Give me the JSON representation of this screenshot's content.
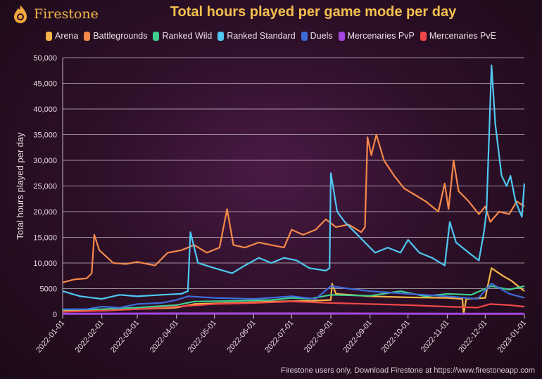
{
  "brand": {
    "name": "Firestone",
    "icon": "flame-icon"
  },
  "footer": "Firestone users only, Download Firestone at https://www.firestoneapp.com",
  "chart_data": {
    "type": "line",
    "title": "Total hours played per game mode per day",
    "xlabel": "",
    "ylabel": "Total hours played per day",
    "ylim": [
      0,
      50000
    ],
    "xlim": [
      "2022-01-01",
      "2023-01-01"
    ],
    "grid": true,
    "legend": "top",
    "yticks": [
      "0",
      "5000",
      "10,000",
      "15,000",
      "20,000",
      "25,000",
      "30,000",
      "35,000",
      "40,000",
      "45,000",
      "50,000"
    ],
    "xticks": [
      "2022-01-01",
      "2022-02-01",
      "2022-03-01",
      "2022-04-01",
      "2022-05-01",
      "2022-06-01",
      "2022-07-01",
      "2022-08-01",
      "2022-09-01",
      "2022-10-01",
      "2022-11-01",
      "2022-12-01",
      "2023-01-01"
    ],
    "series": [
      {
        "name": "Arena",
        "color": "#f7b548",
        "points": [
          [
            "2022-01-01",
            800
          ],
          [
            "2022-02-01",
            700
          ],
          [
            "2022-03-01",
            1000
          ],
          [
            "2022-04-01",
            1300
          ],
          [
            "2022-04-15",
            2000
          ],
          [
            "2022-05-15",
            2200
          ],
          [
            "2022-06-15",
            2500
          ],
          [
            "2022-07-15",
            2600
          ],
          [
            "2022-08-01",
            2800
          ],
          [
            "2022-08-02",
            6000
          ],
          [
            "2022-08-05",
            4000
          ],
          [
            "2022-09-01",
            3500
          ],
          [
            "2022-10-01",
            3300
          ],
          [
            "2022-11-01",
            3200
          ],
          [
            "2022-11-13",
            3000
          ],
          [
            "2022-11-14",
            0
          ],
          [
            "2022-11-16",
            3000
          ],
          [
            "2022-12-01",
            3200
          ],
          [
            "2022-12-06",
            9000
          ],
          [
            "2022-12-15",
            7500
          ],
          [
            "2022-12-22",
            6500
          ],
          [
            "2023-01-01",
            4500
          ]
        ]
      },
      {
        "name": "Battlegrounds",
        "color": "#f6894a",
        "points": [
          [
            "2022-01-01",
            6200
          ],
          [
            "2022-01-10",
            6800
          ],
          [
            "2022-01-20",
            7000
          ],
          [
            "2022-01-24",
            8000
          ],
          [
            "2022-01-26",
            15500
          ],
          [
            "2022-01-30",
            12500
          ],
          [
            "2022-02-10",
            10000
          ],
          [
            "2022-02-20",
            9800
          ],
          [
            "2022-03-01",
            10200
          ],
          [
            "2022-03-15",
            9500
          ],
          [
            "2022-03-25",
            12000
          ],
          [
            "2022-04-05",
            12500
          ],
          [
            "2022-04-15",
            13500
          ],
          [
            "2022-04-25",
            12000
          ],
          [
            "2022-05-05",
            13000
          ],
          [
            "2022-05-11",
            20500
          ],
          [
            "2022-05-16",
            13500
          ],
          [
            "2022-05-25",
            13000
          ],
          [
            "2022-06-05",
            14000
          ],
          [
            "2022-06-15",
            13500
          ],
          [
            "2022-06-25",
            13000
          ],
          [
            "2022-07-01",
            16500
          ],
          [
            "2022-07-10",
            15500
          ],
          [
            "2022-07-20",
            16500
          ],
          [
            "2022-07-28",
            18500
          ],
          [
            "2022-08-05",
            17000
          ],
          [
            "2022-08-15",
            17500
          ],
          [
            "2022-08-25",
            16000
          ],
          [
            "2022-08-28",
            17000
          ],
          [
            "2022-08-30",
            34500
          ],
          [
            "2022-09-02",
            31000
          ],
          [
            "2022-09-06",
            35000
          ],
          [
            "2022-09-12",
            30000
          ],
          [
            "2022-09-20",
            27000
          ],
          [
            "2022-09-28",
            24500
          ],
          [
            "2022-10-05",
            23500
          ],
          [
            "2022-10-15",
            22000
          ],
          [
            "2022-10-25",
            20000
          ],
          [
            "2022-10-30",
            25500
          ],
          [
            "2022-11-02",
            20500
          ],
          [
            "2022-11-06",
            30000
          ],
          [
            "2022-11-10",
            24000
          ],
          [
            "2022-11-18",
            22000
          ],
          [
            "2022-11-26",
            19500
          ],
          [
            "2022-12-01",
            21000
          ],
          [
            "2022-12-05",
            18000
          ],
          [
            "2022-12-12",
            20000
          ],
          [
            "2022-12-20",
            19500
          ],
          [
            "2022-12-26",
            22000
          ],
          [
            "2023-01-01",
            21000
          ]
        ]
      },
      {
        "name": "Ranked Wild",
        "color": "#3ecf8e",
        "points": [
          [
            "2022-01-01",
            900
          ],
          [
            "2022-02-01",
            1000
          ],
          [
            "2022-03-01",
            1300
          ],
          [
            "2022-04-01",
            1800
          ],
          [
            "2022-04-15",
            2500
          ],
          [
            "2022-05-15",
            2600
          ],
          [
            "2022-06-15",
            2800
          ],
          [
            "2022-07-01",
            3200
          ],
          [
            "2022-07-15",
            3000
          ],
          [
            "2022-08-01",
            3800
          ],
          [
            "2022-09-01",
            3600
          ],
          [
            "2022-09-25",
            4500
          ],
          [
            "2022-10-15",
            3500
          ],
          [
            "2022-11-01",
            4000
          ],
          [
            "2022-11-20",
            3800
          ],
          [
            "2022-12-06",
            5500
          ],
          [
            "2022-12-20",
            4800
          ],
          [
            "2023-01-01",
            5500
          ]
        ]
      },
      {
        "name": "Ranked Standard",
        "color": "#4fc8f2",
        "points": [
          [
            "2022-01-01",
            4500
          ],
          [
            "2022-01-15",
            3500
          ],
          [
            "2022-02-01",
            3000
          ],
          [
            "2022-02-15",
            3800
          ],
          [
            "2022-03-01",
            3500
          ],
          [
            "2022-03-20",
            3800
          ],
          [
            "2022-04-05",
            4000
          ],
          [
            "2022-04-10",
            4500
          ],
          [
            "2022-04-12",
            16000
          ],
          [
            "2022-04-18",
            10000
          ],
          [
            "2022-05-01",
            9000
          ],
          [
            "2022-05-15",
            8000
          ],
          [
            "2022-05-25",
            9500
          ],
          [
            "2022-06-05",
            11000
          ],
          [
            "2022-06-15",
            10000
          ],
          [
            "2022-06-25",
            11000
          ],
          [
            "2022-07-05",
            10500
          ],
          [
            "2022-07-15",
            9000
          ],
          [
            "2022-07-28",
            8500
          ],
          [
            "2022-07-31",
            9000
          ],
          [
            "2022-08-01",
            27500
          ],
          [
            "2022-08-06",
            20000
          ],
          [
            "2022-08-12",
            18000
          ],
          [
            "2022-08-20",
            16000
          ],
          [
            "2022-08-28",
            14000
          ],
          [
            "2022-09-05",
            12000
          ],
          [
            "2022-09-15",
            13000
          ],
          [
            "2022-09-25",
            12000
          ],
          [
            "2022-10-01",
            14500
          ],
          [
            "2022-10-10",
            12000
          ],
          [
            "2022-10-20",
            11000
          ],
          [
            "2022-10-30",
            9500
          ],
          [
            "2022-11-03",
            18000
          ],
          [
            "2022-11-08",
            14000
          ],
          [
            "2022-11-18",
            12000
          ],
          [
            "2022-11-26",
            10500
          ],
          [
            "2022-11-30",
            16000
          ],
          [
            "2022-12-02",
            20000
          ],
          [
            "2022-12-06",
            48500
          ],
          [
            "2022-12-09",
            37000
          ],
          [
            "2022-12-14",
            27000
          ],
          [
            "2022-12-18",
            25000
          ],
          [
            "2022-12-21",
            27000
          ],
          [
            "2022-12-25",
            22000
          ],
          [
            "2022-12-30",
            19000
          ],
          [
            "2023-01-01",
            25500
          ]
        ]
      },
      {
        "name": "Duels",
        "color": "#3d6bd9",
        "points": [
          [
            "2022-01-01",
            1000
          ],
          [
            "2022-01-20",
            1000
          ],
          [
            "2022-02-01",
            1500
          ],
          [
            "2022-02-15",
            1300
          ],
          [
            "2022-03-01",
            2000
          ],
          [
            "2022-03-20",
            2200
          ],
          [
            "2022-04-01",
            2800
          ],
          [
            "2022-04-10",
            3500
          ],
          [
            "2022-05-01",
            3200
          ],
          [
            "2022-06-01",
            3000
          ],
          [
            "2022-07-01",
            3500
          ],
          [
            "2022-07-20",
            3000
          ],
          [
            "2022-08-01",
            5500
          ],
          [
            "2022-08-15",
            5000
          ],
          [
            "2022-09-01",
            4500
          ],
          [
            "2022-10-01",
            4000
          ],
          [
            "2022-11-01",
            3500
          ],
          [
            "2022-11-25",
            3000
          ],
          [
            "2022-12-06",
            6000
          ],
          [
            "2022-12-20",
            4000
          ],
          [
            "2023-01-01",
            3200
          ]
        ]
      },
      {
        "name": "Mercenaries PvP",
        "color": "#a544e0",
        "points": [
          [
            "2022-01-01",
            100
          ],
          [
            "2022-04-01",
            150
          ],
          [
            "2022-08-01",
            150
          ],
          [
            "2022-12-01",
            100
          ],
          [
            "2023-01-01",
            100
          ]
        ]
      },
      {
        "name": "Mercenaries PvE",
        "color": "#f04848",
        "points": [
          [
            "2022-01-01",
            500
          ],
          [
            "2022-02-01",
            700
          ],
          [
            "2022-03-01",
            1000
          ],
          [
            "2022-04-01",
            1500
          ],
          [
            "2022-05-01",
            2000
          ],
          [
            "2022-06-01",
            2200
          ],
          [
            "2022-07-01",
            2500
          ],
          [
            "2022-08-01",
            2200
          ],
          [
            "2022-09-01",
            2000
          ],
          [
            "2022-10-01",
            1800
          ],
          [
            "2022-11-01",
            1500
          ],
          [
            "2022-11-25",
            1300
          ],
          [
            "2022-12-05",
            2000
          ],
          [
            "2022-12-20",
            1800
          ],
          [
            "2023-01-01",
            1500
          ]
        ]
      }
    ]
  }
}
